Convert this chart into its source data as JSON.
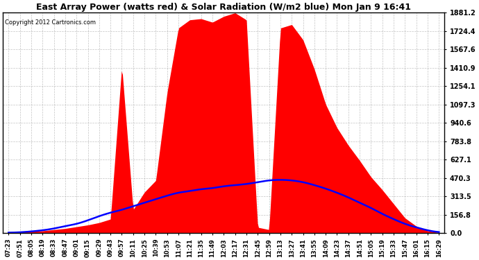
{
  "title": "East Array Power (watts red) & Solar Radiation (W/m2 blue) Mon Jan 9 16:41",
  "copyright": "Copyright 2012 Cartronics.com",
  "ymax": 1881.2,
  "yticks": [
    0.0,
    156.8,
    313.5,
    470.3,
    627.1,
    783.8,
    940.6,
    1097.3,
    1254.1,
    1410.9,
    1567.6,
    1724.4,
    1881.2
  ],
  "bg_color": "#ffffff",
  "grid_color": "#aaaaaa",
  "fill_color": "#ff0000",
  "line_color": "#0000ff",
  "xtick_labels": [
    "07:23",
    "07:51",
    "08:05",
    "08:19",
    "08:33",
    "08:47",
    "09:01",
    "09:15",
    "09:29",
    "09:43",
    "09:57",
    "10:11",
    "10:25",
    "10:39",
    "10:53",
    "11:07",
    "11:21",
    "11:35",
    "11:49",
    "12:03",
    "12:17",
    "12:31",
    "12:45",
    "12:59",
    "13:13",
    "13:27",
    "13:41",
    "13:55",
    "14:09",
    "14:23",
    "14:37",
    "14:51",
    "15:05",
    "15:19",
    "15:33",
    "15:47",
    "16:01",
    "16:15",
    "16:29"
  ],
  "power_values": [
    5,
    10,
    15,
    20,
    30,
    40,
    55,
    70,
    90,
    120,
    1430,
    200,
    350,
    450,
    1200,
    1750,
    1820,
    1830,
    1800,
    1850,
    1880,
    1820,
    50,
    30,
    1750,
    1780,
    1650,
    1400,
    1100,
    900,
    750,
    620,
    480,
    370,
    250,
    130,
    60,
    20,
    5
  ],
  "radiation_values": [
    5,
    8,
    15,
    25,
    40,
    60,
    80,
    110,
    145,
    175,
    200,
    230,
    260,
    290,
    320,
    345,
    360,
    375,
    385,
    400,
    410,
    420,
    435,
    450,
    455,
    450,
    435,
    410,
    380,
    345,
    305,
    260,
    215,
    165,
    120,
    80,
    50,
    25,
    10
  ]
}
